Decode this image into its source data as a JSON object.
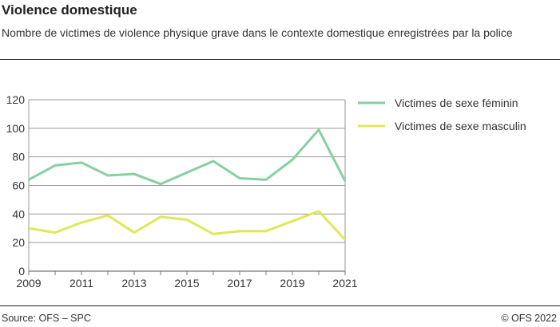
{
  "title": "Violence domestique",
  "subtitle": "Nombre de victimes de violence physique grave dans le contexte domestique enregistrées par la police",
  "footer": {
    "source": "Source: OFS – SPC",
    "copyright": "© OFS 2022"
  },
  "chart_data": {
    "type": "line",
    "title": "Violence domestique",
    "x": [
      2009,
      2010,
      2011,
      2012,
      2013,
      2014,
      2015,
      2016,
      2017,
      2018,
      2019,
      2020,
      2021
    ],
    "x_tick_labels": [
      "2009",
      "2011",
      "2013",
      "2015",
      "2017",
      "2019",
      "2021"
    ],
    "y_tick_labels": [
      "0",
      "20",
      "40",
      "60",
      "80",
      "100",
      "120"
    ],
    "ylim": [
      0,
      120
    ],
    "xlim": [
      2009,
      2021
    ],
    "grid": true,
    "legend_position": "right",
    "series": [
      {
        "name": "Victimes de sexe féminin",
        "color": "#86d09f",
        "values": [
          64,
          74,
          76,
          67,
          68,
          61,
          69,
          77,
          65,
          64,
          78,
          99,
          63
        ]
      },
      {
        "name": "Victimes de sexe masculin",
        "color": "#dfe856",
        "values": [
          30,
          27,
          34,
          39,
          27,
          38,
          36,
          26,
          28,
          28,
          35,
          42,
          22
        ]
      }
    ]
  }
}
